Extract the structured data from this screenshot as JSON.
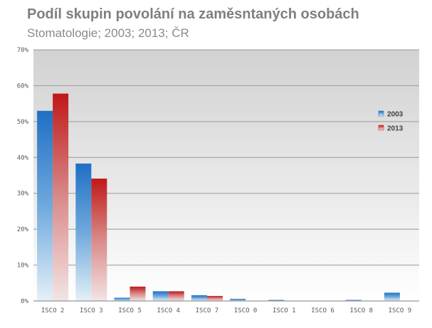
{
  "chart_data": {
    "type": "bar",
    "title": "Podíl skupin povolání na zaměsntaných osobách",
    "subtitle": "Stomatologie; 2003; 2013; ČR",
    "xlabel": "",
    "ylabel": "",
    "categories": [
      "ISCO 2",
      "ISCO 3",
      "ISCO 5",
      "ISCO 4",
      "ISCO 7",
      "ISCO 0",
      "ISCO 1",
      "ISCO 6",
      "ISCO 8",
      "ISCO 9"
    ],
    "series": [
      {
        "name": "2003",
        "values": [
          53.0,
          38.3,
          0.9,
          2.7,
          1.6,
          0.6,
          0.3,
          0.0,
          0.3,
          2.3
        ],
        "color": "#1f6fc4"
      },
      {
        "name": "2013",
        "values": [
          57.8,
          34.1,
          4.0,
          2.7,
          1.4,
          0.1,
          0.1,
          0.0,
          0.0,
          0.0
        ],
        "color": "#c01818"
      }
    ],
    "ylim": [
      0,
      70
    ],
    "yticks": [
      0,
      10,
      20,
      30,
      40,
      50,
      60,
      70
    ],
    "ytick_labels": [
      "0%",
      "10%",
      "20%",
      "30%",
      "40%",
      "50%",
      "60%",
      "70%"
    ],
    "grid": true,
    "legend_position": "right"
  }
}
